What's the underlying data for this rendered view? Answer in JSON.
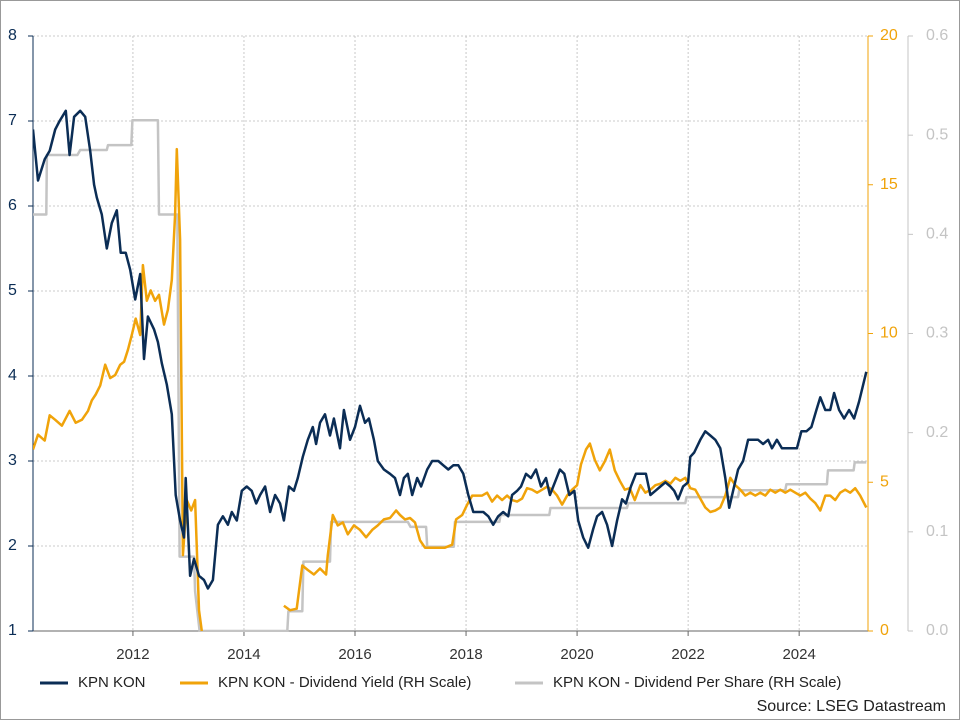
{
  "chart_data": {
    "type": "line",
    "xlim": [
      2010.2,
      2025.24
    ],
    "xticks": [
      2012,
      2014,
      2016,
      2018,
      2020,
      2022,
      2024
    ],
    "ylim": [
      1,
      8
    ],
    "yticks": [
      1,
      2,
      3,
      4,
      5,
      6,
      7,
      8
    ],
    "y2lim": [
      0,
      20
    ],
    "y2ticks": [
      0,
      5,
      10,
      15,
      20
    ],
    "y3lim": [
      0,
      0.6
    ],
    "y3ticks": [
      {
        "value": 0,
        "label": "0.0"
      },
      0.1,
      0.2,
      0.3,
      0.4,
      0.5,
      0.6
    ],
    "grid": true,
    "legend": "bottom",
    "source": "Source: LSEG Datastream",
    "series": [
      {
        "name": "KPN KON",
        "color": "#0b2d55",
        "axis": "y",
        "x": [
          2010.2,
          2010.29,
          2010.41,
          2010.5,
          2010.6,
          2010.68,
          2010.79,
          2010.86,
          2010.94,
          2011.05,
          2011.14,
          2011.23,
          2011.3,
          2011.35,
          2011.44,
          2011.53,
          2011.62,
          2011.71,
          2011.78,
          2011.87,
          2011.95,
          2012.04,
          2012.13,
          2012.2,
          2012.27,
          2012.38,
          2012.45,
          2012.52,
          2012.61,
          2012.7,
          2012.77,
          2012.85,
          2012.92,
          2012.95,
          2013.03,
          2013.1,
          2013.19,
          2013.28,
          2013.35,
          2013.44,
          2013.53,
          2013.62,
          2013.71,
          2013.78,
          2013.87,
          2013.96,
          2014.05,
          2014.14,
          2014.22,
          2014.29,
          2014.38,
          2014.47,
          2014.56,
          2014.65,
          2014.72,
          2014.81,
          2014.9,
          2014.97,
          2015.06,
          2015.15,
          2015.24,
          2015.3,
          2015.37,
          2015.46,
          2015.55,
          2015.62,
          2015.73,
          2015.8,
          2015.91,
          2016.0,
          2016.09,
          2016.18,
          2016.25,
          2016.34,
          2016.41,
          2016.52,
          2016.63,
          2016.72,
          2016.81,
          2016.88,
          2016.95,
          2017.03,
          2017.12,
          2017.19,
          2017.3,
          2017.39,
          2017.5,
          2017.59,
          2017.68,
          2017.77,
          2017.86,
          2017.95,
          2018.04,
          2018.13,
          2018.22,
          2018.31,
          2018.4,
          2018.49,
          2018.58,
          2018.67,
          2018.76,
          2018.83,
          2018.92,
          2018.99,
          2019.08,
          2019.17,
          2019.26,
          2019.35,
          2019.44,
          2019.51,
          2019.6,
          2019.69,
          2019.77,
          2019.86,
          2019.95,
          2020.02,
          2020.11,
          2020.2,
          2020.29,
          2020.36,
          2020.45,
          2020.54,
          2020.63,
          2020.72,
          2020.81,
          2020.88,
          2020.97,
          2021.06,
          2021.15,
          2021.24,
          2021.32,
          2021.41,
          2021.5,
          2021.59,
          2021.68,
          2021.75,
          2021.82,
          2021.91,
          2022.0,
          2022.04,
          2022.11,
          2022.22,
          2022.31,
          2022.4,
          2022.49,
          2022.58,
          2022.67,
          2022.74,
          2022.81,
          2022.9,
          2022.99,
          2023.08,
          2023.17,
          2023.26,
          2023.35,
          2023.44,
          2023.51,
          2023.6,
          2023.69,
          2023.78,
          2023.87,
          2023.96,
          2024.04,
          2024.13,
          2024.22,
          2024.31,
          2024.38,
          2024.47,
          2024.56,
          2024.63,
          2024.72,
          2024.81,
          2024.9,
          2024.99,
          2025.08,
          2025.21
        ],
        "values": [
          6.9,
          6.3,
          6.55,
          6.65,
          6.9,
          7.0,
          7.12,
          6.6,
          7.05,
          7.12,
          7.05,
          6.65,
          6.25,
          6.1,
          5.9,
          5.5,
          5.8,
          5.95,
          5.45,
          5.45,
          5.25,
          4.9,
          5.2,
          4.2,
          4.7,
          4.55,
          4.4,
          4.15,
          3.9,
          3.55,
          2.6,
          2.3,
          2.1,
          2.8,
          1.65,
          1.85,
          1.65,
          1.6,
          1.5,
          1.6,
          2.25,
          2.35,
          2.25,
          2.4,
          2.3,
          2.65,
          2.7,
          2.65,
          2.5,
          2.6,
          2.7,
          2.4,
          2.6,
          2.5,
          2.3,
          2.7,
          2.65,
          2.8,
          3.05,
          3.25,
          3.4,
          3.2,
          3.45,
          3.55,
          3.3,
          3.5,
          3.15,
          3.6,
          3.25,
          3.4,
          3.65,
          3.45,
          3.5,
          3.25,
          3.0,
          2.9,
          2.85,
          2.8,
          2.6,
          2.8,
          2.85,
          2.6,
          2.8,
          2.7,
          2.9,
          3.0,
          3.0,
          2.95,
          2.9,
          2.95,
          2.95,
          2.85,
          2.6,
          2.4,
          2.4,
          2.4,
          2.35,
          2.25,
          2.35,
          2.4,
          2.35,
          2.6,
          2.65,
          2.7,
          2.85,
          2.8,
          2.9,
          2.7,
          2.8,
          2.6,
          2.75,
          2.9,
          2.85,
          2.6,
          2.65,
          2.3,
          2.1,
          1.98,
          2.2,
          2.35,
          2.4,
          2.25,
          2.0,
          2.3,
          2.55,
          2.5,
          2.7,
          2.85,
          2.85,
          2.85,
          2.6,
          2.65,
          2.7,
          2.75,
          2.7,
          2.65,
          2.55,
          2.7,
          2.75,
          3.05,
          3.1,
          3.25,
          3.35,
          3.3,
          3.25,
          3.15,
          2.8,
          2.45,
          2.65,
          2.9,
          3.0,
          3.25,
          3.25,
          3.25,
          3.2,
          3.25,
          3.15,
          3.25,
          3.15,
          3.15,
          3.15,
          3.15,
          3.35,
          3.35,
          3.4,
          3.6,
          3.75,
          3.6,
          3.6,
          3.8,
          3.6,
          3.5,
          3.6,
          3.5,
          3.7,
          4.05
        ]
      },
      {
        "name": "KPN KON - Dividend Yield (RH Scale)",
        "color": "#f0a30a",
        "axis": "y2",
        "x": [
          2010.2,
          2010.29,
          2010.41,
          2010.5,
          2010.6,
          2010.72,
          2010.86,
          2010.97,
          2011.08,
          2011.19,
          2011.26,
          2011.33,
          2011.41,
          2011.5,
          2011.59,
          2011.68,
          2011.77,
          2011.84,
          2011.91,
          2011.98,
          2012.05,
          2012.13,
          2012.18,
          2012.25,
          2012.32,
          2012.4,
          2012.47,
          2012.56,
          2012.63,
          2012.7,
          2012.76,
          2012.79,
          2012.85,
          2012.9,
          2012.97,
          2013.05,
          2013.12,
          2013.19,
          2013.24,
          2014.0,
          2014.72,
          2014.83,
          2014.95,
          2015.05,
          2015.15,
          2015.26,
          2015.37,
          2015.48,
          2015.51,
          2015.6,
          2015.69,
          2015.78,
          2015.87,
          2015.98,
          2016.09,
          2016.2,
          2016.31,
          2016.41,
          2016.52,
          2016.63,
          2016.74,
          2016.81,
          2016.9,
          2016.99,
          2017.08,
          2017.17,
          2017.26,
          2017.44,
          2017.62,
          2017.75,
          2017.82,
          2017.93,
          2018.02,
          2018.11,
          2018.2,
          2018.29,
          2018.38,
          2018.47,
          2018.56,
          2018.65,
          2018.74,
          2018.83,
          2018.92,
          2019.01,
          2019.1,
          2019.19,
          2019.28,
          2019.37,
          2019.46,
          2019.55,
          2019.64,
          2019.73,
          2019.82,
          2019.91,
          2020.0,
          2020.07,
          2020.16,
          2020.23,
          2020.32,
          2020.41,
          2020.5,
          2020.59,
          2020.68,
          2020.77,
          2020.86,
          2020.95,
          2021.04,
          2021.14,
          2021.23,
          2021.32,
          2021.41,
          2021.5,
          2021.59,
          2021.68,
          2021.77,
          2021.86,
          2021.95,
          2022.04,
          2022.13,
          2022.22,
          2022.31,
          2022.4,
          2022.49,
          2022.58,
          2022.67,
          2022.76,
          2022.85,
          2022.94,
          2023.03,
          2023.12,
          2023.21,
          2023.3,
          2023.39,
          2023.48,
          2023.57,
          2023.66,
          2023.75,
          2023.84,
          2023.93,
          2024.02,
          2024.11,
          2024.2,
          2024.29,
          2024.38,
          2024.47,
          2024.56,
          2024.65,
          2024.74,
          2024.83,
          2024.92,
          2025.01,
          2025.1,
          2025.21
        ],
        "values": [
          6.1,
          6.6,
          6.4,
          7.25,
          7.1,
          6.9,
          7.4,
          7.0,
          7.1,
          7.4,
          7.75,
          7.95,
          8.25,
          8.95,
          8.5,
          8.6,
          8.95,
          9.05,
          9.45,
          9.95,
          10.5,
          9.95,
          12.3,
          11.1,
          11.45,
          11.1,
          11.3,
          10.3,
          10.8,
          11.8,
          14.0,
          16.2,
          13.15,
          2.55,
          4.4,
          4.05,
          4.4,
          0.7,
          0,
          null,
          0.85,
          0.7,
          0.75,
          2.2,
          2.05,
          1.9,
          2.1,
          1.9,
          2.55,
          3.9,
          3.55,
          3.65,
          3.25,
          3.55,
          3.4,
          3.15,
          3.4,
          3.55,
          3.75,
          3.8,
          4.05,
          3.9,
          3.75,
          3.8,
          3.65,
          3.05,
          2.8,
          2.8,
          2.8,
          2.9,
          3.75,
          3.9,
          4.25,
          4.55,
          4.55,
          4.55,
          4.65,
          4.35,
          4.55,
          4.4,
          4.55,
          4.4,
          4.35,
          4.45,
          4.8,
          4.75,
          4.65,
          4.75,
          4.85,
          4.75,
          4.55,
          4.25,
          4.55,
          4.75,
          4.9,
          5.6,
          6.1,
          6.3,
          5.75,
          5.4,
          5.7,
          6.1,
          5.4,
          5.05,
          4.75,
          4.8,
          4.4,
          4.9,
          4.65,
          4.75,
          4.9,
          4.95,
          5.05,
          4.95,
          5.15,
          5.05,
          5.15,
          4.8,
          4.75,
          4.45,
          4.15,
          4.0,
          4.05,
          4.15,
          4.55,
          5.15,
          4.9,
          4.75,
          4.55,
          4.65,
          4.55,
          4.65,
          4.55,
          4.75,
          4.65,
          4.75,
          4.65,
          4.75,
          4.65,
          4.55,
          4.65,
          4.45,
          4.3,
          4.05,
          4.55,
          4.55,
          4.4,
          4.65,
          4.75,
          4.65,
          4.8,
          4.55,
          4.15
        ]
      },
      {
        "name": "KPN KON - Dividend Per Share (RH Scale)",
        "color": "#c4c4c4",
        "axis": "y3",
        "x": [
          2010.2,
          2010.44,
          2010.45,
          2011.0,
          2011.05,
          2011.53,
          2011.55,
          2011.97,
          2011.99,
          2012.45,
          2012.47,
          2012.8,
          2012.84,
          2013.1,
          2013.12,
          2013.2,
          2014.78,
          2014.8,
          2015.05,
          2015.07,
          2015.55,
          2015.57,
          2016.95,
          2017.0,
          2017.28,
          2017.3,
          2017.78,
          2017.8,
          2018.6,
          2018.62,
          2019.5,
          2019.52,
          2020.9,
          2020.92,
          2021.95,
          2021.97,
          2022.9,
          2022.92,
          2023.75,
          2023.77,
          2024.5,
          2024.52,
          2024.98,
          2025.0,
          2025.21
        ],
        "values": [
          0.42,
          0.42,
          0.48,
          0.48,
          0.485,
          0.485,
          0.49,
          0.49,
          0.515,
          0.515,
          0.42,
          0.42,
          0.075,
          0.075,
          0.04,
          0,
          0,
          0.02,
          0.02,
          0.07,
          0.07,
          0.11,
          0.11,
          0.105,
          0.105,
          0.085,
          0.085,
          0.11,
          0.11,
          0.117,
          0.117,
          0.124,
          0.124,
          0.129,
          0.129,
          0.135,
          0.135,
          0.142,
          0.142,
          0.148,
          0.148,
          0.162,
          0.162,
          0.17,
          0.17
        ]
      }
    ]
  }
}
